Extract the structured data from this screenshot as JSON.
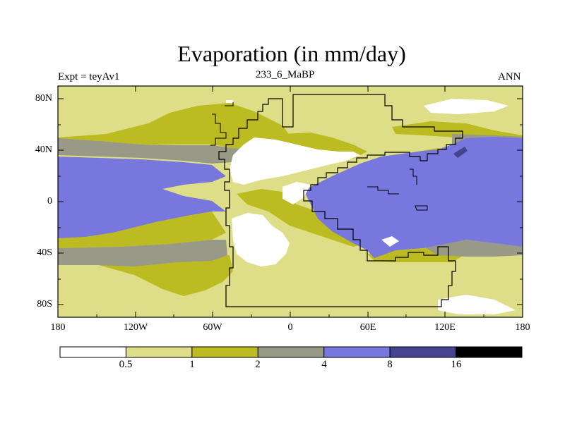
{
  "title": "Evaporation (in mm/day)",
  "left_label": "Expt = teyAv1",
  "center_label": "233_6_MaBP",
  "right_label": "ANN",
  "y_axis_labels": [
    "80N",
    "40N",
    "0",
    "40S",
    "80S"
  ],
  "x_axis_labels": [
    "180",
    "120W",
    "60W",
    "0",
    "60E",
    "120E",
    "180"
  ],
  "colorbar": {
    "levels": [
      "0.5",
      "1",
      "2",
      "4",
      "8",
      "16"
    ],
    "colors": [
      "#ffffff",
      "#dfde88",
      "#bdbb22",
      "#999988",
      "#7777dd",
      "#44448f",
      "#000000"
    ]
  },
  "palette": {
    "white": "#ffffff",
    "pale": "#dfde88",
    "olive": "#bdbb22",
    "gray": "#999988",
    "blue": "#7777dd",
    "navy": "#44448f"
  }
}
